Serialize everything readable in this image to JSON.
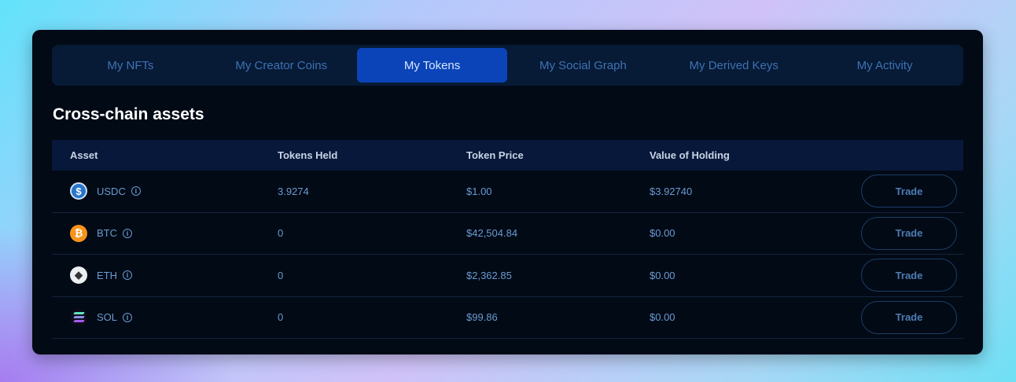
{
  "tabs": [
    {
      "label": "My NFTs"
    },
    {
      "label": "My Creator Coins"
    },
    {
      "label": "My Tokens",
      "active": true
    },
    {
      "label": "My Social Graph"
    },
    {
      "label": "My Derived Keys"
    },
    {
      "label": "My Activity"
    }
  ],
  "section_title": "Cross-chain assets",
  "table": {
    "headers": [
      "Asset",
      "Tokens Held",
      "Token Price",
      "Value of Holding"
    ],
    "rows": [
      {
        "asset": "USDC",
        "icon": "usdc-icon",
        "held": "3.9274",
        "price": "$1.00",
        "value": "$3.92740",
        "action": "Trade"
      },
      {
        "asset": "BTC",
        "icon": "btc-icon",
        "held": "0",
        "price": "$42,504.84",
        "value": "$0.00",
        "action": "Trade"
      },
      {
        "asset": "ETH",
        "icon": "eth-icon",
        "held": "0",
        "price": "$2,362.85",
        "value": "$0.00",
        "action": "Trade"
      },
      {
        "asset": "SOL",
        "icon": "sol-icon",
        "held": "0",
        "price": "$99.86",
        "value": "$0.00",
        "action": "Trade"
      }
    ]
  },
  "colors": {
    "active_tab": "#0a44b8",
    "card": "#020a16",
    "usdc": "#2775ca",
    "btc": "#f7931a"
  }
}
